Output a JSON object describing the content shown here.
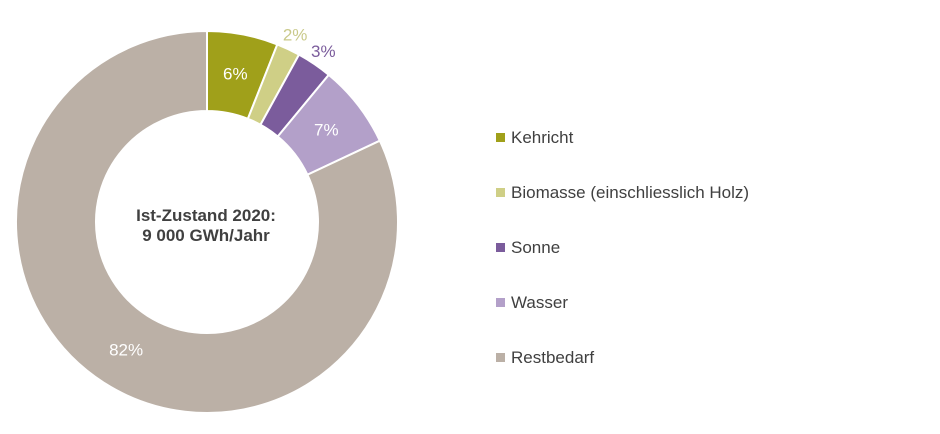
{
  "chart_data": {
    "type": "pie",
    "center_text": [
      "Ist-Zustand 2020:",
      "9 000 GWh/Jahr"
    ],
    "categories": [
      "Kehricht",
      "Biomasse (einschliesslich Holz)",
      "Sonne",
      "Wasser",
      "Restbedarf"
    ],
    "values": [
      6,
      2,
      3,
      7,
      82
    ],
    "labels": [
      "6%",
      "2%",
      "3%",
      "7%",
      "82%"
    ],
    "colors": [
      "#a0a01a",
      "#cfcf86",
      "#7b5c9c",
      "#b3a0c9",
      "#bbb0a6"
    ],
    "label_colors": [
      "#ffffff",
      "#c9c98a",
      "#7b5c9c",
      "#ffffff",
      "#ffffff"
    ],
    "label_outside": [
      false,
      true,
      true,
      false,
      false
    ],
    "legend_placement": "right",
    "donut": true
  }
}
